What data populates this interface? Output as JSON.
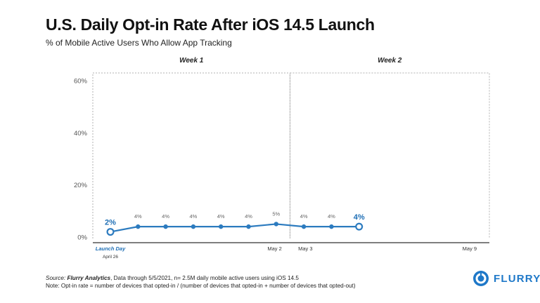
{
  "title": "U.S. Daily Opt-in Rate After iOS 14.5 Launch",
  "subtitle": "% of Mobile Active Users Who Allow App Tracking",
  "chart_data": {
    "type": "line",
    "title": "U.S. Daily Opt-in Rate After iOS 14.5 Launch",
    "subtitle": "% of Mobile Active Users Who Allow App Tracking",
    "xlabel": "",
    "ylabel": "",
    "ylim": [
      0,
      60
    ],
    "yticks": [
      0,
      20,
      40,
      60
    ],
    "ytick_labels": [
      "0%",
      "20%",
      "40%",
      "60%"
    ],
    "xlim": [
      0,
      13
    ],
    "x": [
      0,
      1,
      2,
      3,
      4,
      5,
      6,
      7,
      8,
      9
    ],
    "values": [
      2,
      4,
      4,
      4,
      4,
      4,
      5,
      4,
      4,
      4
    ],
    "point_labels": [
      "2%",
      "4%",
      "4%",
      "4%",
      "4%",
      "4%",
      "5%",
      "4%",
      "4%",
      "4%"
    ],
    "highlight_points": [
      0,
      9
    ],
    "x_annotations": [
      {
        "x": 0,
        "label": "Launch Day",
        "sublabel": "April 26"
      },
      {
        "x": 6,
        "label": "May 2",
        "sublabel": ""
      },
      {
        "x": 7,
        "label": "May 3",
        "sublabel": ""
      },
      {
        "x": 13,
        "label": "May 9",
        "sublabel": ""
      }
    ],
    "periods": [
      {
        "label": "Week 1",
        "x_start": 0,
        "x_end": 6.5
      },
      {
        "label": "Week 2",
        "x_start": 6.5,
        "x_end": 13
      }
    ],
    "colors": {
      "line": "#2c7bbf",
      "axis": "#333333",
      "dashed": "#b0b0b0",
      "label": "#555555",
      "accent": "#1f6fb5"
    }
  },
  "footer": {
    "source_label": "Source:",
    "source_name": "Flurry Analytics",
    "source_rest": ", Data through 5/5/2021, n= 2.5M daily mobile active users using iOS 14.5",
    "note": "Note: Opt-in rate = number of devices that opted-in / (number of devices that opted-in + number of devices that opted-out)"
  },
  "logo": {
    "text": "FLURRY",
    "color": "#1e78c8"
  }
}
